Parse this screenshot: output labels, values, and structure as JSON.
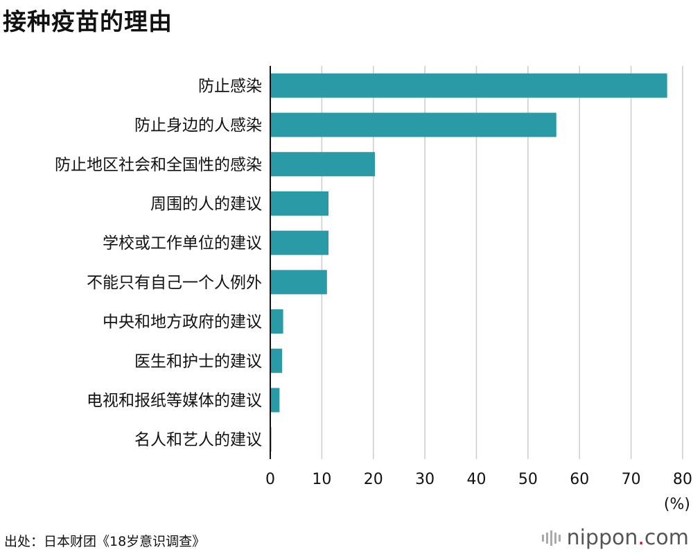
{
  "chart_data": {
    "type": "bar",
    "orientation": "horizontal",
    "title": "接种疫苗的理由",
    "categories": [
      "防止感染",
      "防止身边的人感染",
      "防止地区社会和全国性的感染",
      "周围的人的建议",
      "学校或工作单位的建议",
      "不能只有自己一个人例外",
      "中央和地方政府的建议",
      "医生和护士的建议",
      "电视和报纸等媒体的建议",
      "名人和艺人的建议"
    ],
    "values": [
      77.0,
      55.5,
      20.3,
      11.3,
      11.3,
      11.0,
      2.5,
      2.3,
      1.8,
      0.2
    ],
    "xlim": [
      0,
      80
    ],
    "xticks": [
      "0",
      "10",
      "20",
      "30",
      "40",
      "50",
      "60",
      "70",
      "80"
    ],
    "xunit": "(%)",
    "bar_color": "#2a9aa6",
    "grid_color": "#cccccc"
  },
  "source": "出处：日本财团《18岁意识调查》",
  "logo": {
    "name": "nippon",
    "dot": ".",
    "suffix": "com",
    "dot_color": "#e0001b"
  }
}
